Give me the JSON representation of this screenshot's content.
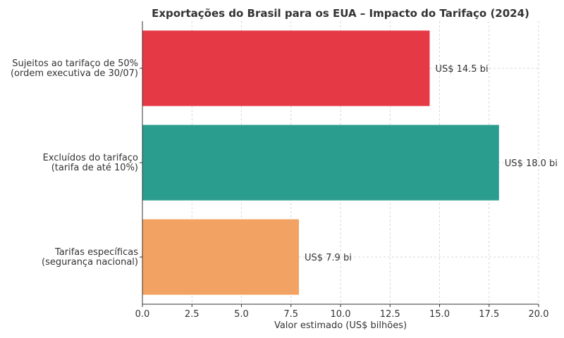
{
  "chart_data": {
    "type": "bar",
    "orientation": "horizontal",
    "title": "Exportações do Brasil para os EUA – Impacto do Tarifaço (2024)",
    "xlabel": "Valor estimado (US$ bilhões)",
    "ylabel": "",
    "xlim": [
      0,
      20
    ],
    "xticks": [
      "0.0",
      "2.5",
      "5.0",
      "7.5",
      "10.0",
      "12.5",
      "15.0",
      "17.5",
      "20.0"
    ],
    "grid": true,
    "categories": [
      [
        "Tarifas específicas",
        "(segurança nacional)"
      ],
      [
        "Excluídos do tarifaço",
        "(tarifa de até 10%)"
      ],
      [
        "Sujeitos ao tarifaço de 50%",
        "(ordem executiva de 30/07)"
      ]
    ],
    "values": [
      7.9,
      18.0,
      14.5
    ],
    "data_labels": [
      "US$ 7.9 bi",
      "US$ 18.0 bi",
      "US$ 14.5 bi"
    ],
    "colors": [
      "#f2a262",
      "#2a9d8f",
      "#e63946"
    ]
  }
}
